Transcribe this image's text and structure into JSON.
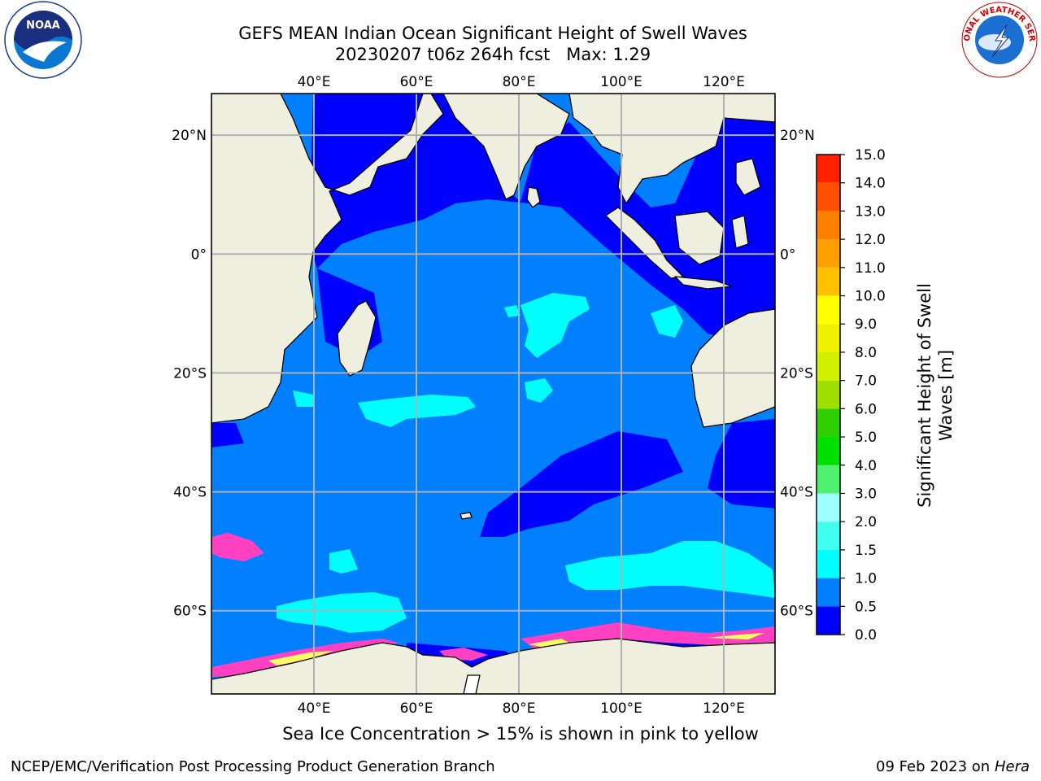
{
  "title": {
    "line1": "GEFS MEAN Indian Ocean Significant Height of Swell Waves",
    "line2": "20230207 t06z 264h fcst   Max: 1.29"
  },
  "map": {
    "lon_range": [
      20,
      130
    ],
    "lat_range": [
      -74,
      27
    ],
    "lon_ticks": [
      {
        "value": 40,
        "label": "40°E"
      },
      {
        "value": 60,
        "label": "60°E"
      },
      {
        "value": 80,
        "label": "80°E"
      },
      {
        "value": 100,
        "label": "100°E"
      },
      {
        "value": 120,
        "label": "120°E"
      }
    ],
    "lat_ticks": [
      {
        "value": 20,
        "label": "20°N"
      },
      {
        "value": 0,
        "label": "0°"
      },
      {
        "value": -20,
        "label": "20°S"
      },
      {
        "value": -40,
        "label": "40°S"
      },
      {
        "value": -60,
        "label": "60°S"
      }
    ],
    "colors": {
      "land": "#efefdf",
      "ocean_base": "#0080ff",
      "band_0_0_5": "#0000ff",
      "band_1_0_1_5": "#00ffff",
      "band_1_5_2_0": "#40ffee",
      "sea_ice_pink": "#ff40c0",
      "sea_ice_yellow": "#ffff60",
      "grid": "#b0b0b0"
    }
  },
  "colorbar": {
    "title": "Significant Height of Swell Waves [m]",
    "levels": [
      {
        "label": "0.0",
        "color": "#0000ff"
      },
      {
        "label": "0.5",
        "color": "#0080ff"
      },
      {
        "label": "1.0",
        "color": "#00ffff"
      },
      {
        "label": "1.5",
        "color": "#40ffee"
      },
      {
        "label": "2.0",
        "color": "#a0ffff"
      },
      {
        "label": "3.0",
        "color": "#50f070"
      },
      {
        "label": "4.0",
        "color": "#00e000"
      },
      {
        "label": "5.0",
        "color": "#30d000"
      },
      {
        "label": "6.0",
        "color": "#a0e000"
      },
      {
        "label": "7.0",
        "color": "#d0f000"
      },
      {
        "label": "8.0",
        "color": "#f0f000"
      },
      {
        "label": "9.0",
        "color": "#ffff00"
      },
      {
        "label": "10.0",
        "color": "#ffc000"
      },
      {
        "label": "11.0",
        "color": "#ffa000"
      },
      {
        "label": "12.0",
        "color": "#ff8000"
      },
      {
        "label": "13.0",
        "color": "#ff5000"
      },
      {
        "label": "14.0",
        "color": "#ff2000"
      },
      {
        "label": "15.0",
        "color": ""
      }
    ]
  },
  "ice_note": "Sea Ice Concentration > 15% is shown in pink to yellow",
  "footer": {
    "left": "NCEP/EMC/Verification Post Processing Product Generation Branch",
    "right_date": "09 Feb 2023 on",
    "right_host": "Hera"
  },
  "logos": {
    "noaa": {
      "icon": "noaa-logo",
      "text": "NOAA"
    },
    "nws": {
      "icon": "nws-logo",
      "text": "NATIONAL WEATHER SERVICE"
    }
  }
}
